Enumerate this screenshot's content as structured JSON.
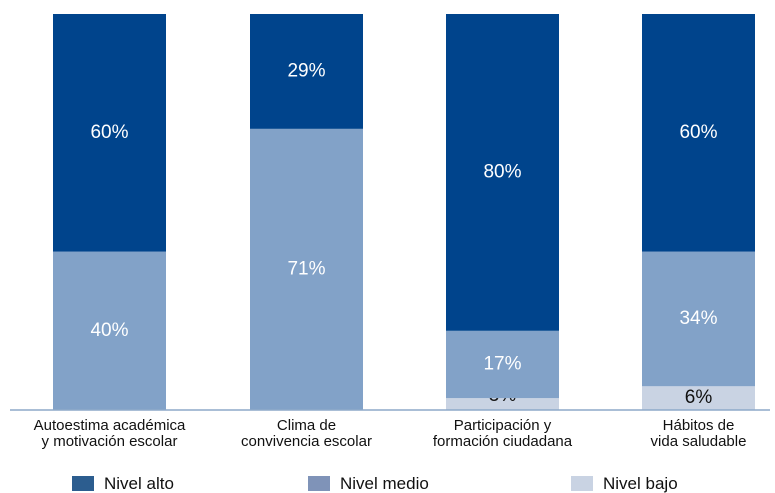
{
  "chart_data": {
    "type": "bar",
    "stacked": true,
    "orientation": "vertical",
    "ylim": [
      0,
      100
    ],
    "grid": false,
    "legend_position": "bottom",
    "categories": [
      [
        "Autoestima académica",
        "y motivación escolar"
      ],
      [
        "Clima de",
        "convivencia escolar"
      ],
      [
        "Participación y",
        "formación ciudadana"
      ],
      [
        "Hábitos de",
        "vida saludable"
      ]
    ],
    "series": [
      {
        "name": "Nivel bajo",
        "color": "#c9d3e3",
        "label_color": "#111111",
        "values": [
          0,
          0,
          3,
          6
        ]
      },
      {
        "name": "Nivel medio",
        "color": "#82a2c8",
        "label_color": "#ffffff",
        "values": [
          40,
          71,
          17,
          34
        ]
      },
      {
        "name": "Nivel alto",
        "color": "#00448c",
        "label_color": "#ffffff",
        "values": [
          60,
          29,
          80,
          60
        ]
      }
    ],
    "value_suffix": "%"
  },
  "legend": [
    {
      "name": "Nivel alto",
      "color": "#2c5d8f"
    },
    {
      "name": "Nivel medio",
      "color": "#7f93b8"
    },
    {
      "name": "Nivel bajo",
      "color": "#c9d3e3"
    }
  ]
}
